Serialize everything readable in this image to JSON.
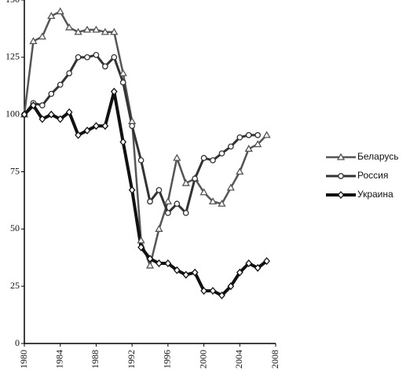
{
  "chart_data": {
    "type": "line",
    "x": [
      1980,
      1981,
      1982,
      1983,
      1984,
      1985,
      1986,
      1987,
      1988,
      1989,
      1990,
      1991,
      1992,
      1993,
      1994,
      1995,
      1996,
      1997,
      1998,
      1999,
      2000,
      2001,
      2002,
      2003,
      2004,
      2005,
      2006,
      2007
    ],
    "series": [
      {
        "name": "Беларусь",
        "color": "#555555",
        "marker": "triangle",
        "values": [
          100,
          132,
          134,
          143,
          145,
          138,
          136,
          137,
          137,
          136,
          136,
          118,
          97,
          45,
          34,
          50,
          62,
          81,
          70,
          72,
          66,
          62,
          61,
          68,
          75,
          85,
          87,
          91
        ]
      },
      {
        "name": "Россия",
        "color": "#333333",
        "marker": "circle",
        "values": [
          100,
          105,
          104,
          109,
          113,
          118,
          125,
          125,
          126,
          121,
          125,
          114,
          95,
          80,
          62,
          67,
          57,
          61,
          57,
          72,
          81,
          80,
          83,
          86,
          90,
          91,
          91,
          null
        ]
      },
      {
        "name": "Украина",
        "color": "#111111",
        "marker": "diamond",
        "values": [
          100,
          104,
          98,
          100,
          98,
          101,
          91,
          93,
          95,
          95,
          110,
          88,
          67,
          42,
          37,
          35,
          35,
          32,
          30,
          31,
          23,
          23,
          21,
          25,
          31,
          35,
          33,
          36
        ]
      }
    ],
    "xlim": [
      1980,
      2008
    ],
    "xticks": [
      1980,
      1984,
      1988,
      1992,
      1996,
      2000,
      2004,
      2008
    ],
    "ylim": [
      0,
      150
    ],
    "yticks": [
      0,
      25,
      50,
      75,
      100,
      125,
      150
    ],
    "legend": "right"
  }
}
